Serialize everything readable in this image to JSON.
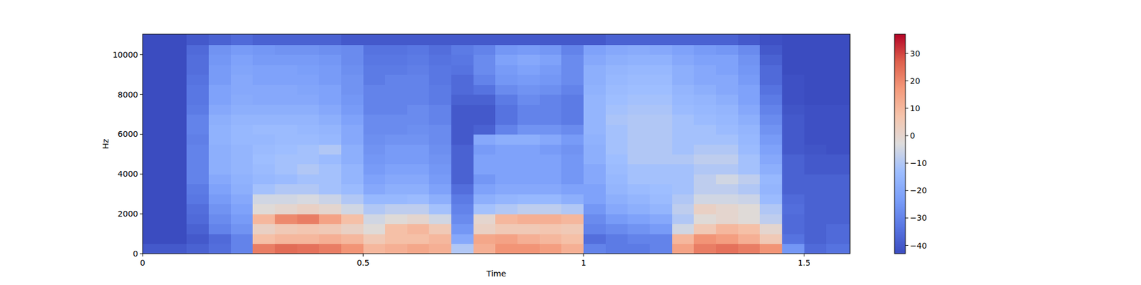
{
  "chart_data": {
    "type": "heatmap",
    "xlabel": "Time",
    "ylabel": "Hz",
    "xlim": [
      0,
      1.604
    ],
    "ylim": [
      0,
      11025
    ],
    "xticks": [
      0,
      0.5,
      1,
      1.5
    ],
    "yticks": [
      0,
      2000,
      4000,
      6000,
      8000,
      10000
    ],
    "x_edges": [
      0,
      0.05,
      0.1,
      0.15,
      0.2,
      0.25,
      0.3,
      0.35,
      0.4,
      0.45,
      0.5,
      0.55,
      0.6,
      0.65,
      0.7,
      0.75,
      0.8,
      0.85,
      0.9,
      0.95,
      1.0,
      1.05,
      1.1,
      1.15,
      1.2,
      1.25,
      1.3,
      1.35,
      1.4,
      1.45,
      1.5,
      1.55,
      1.6,
      1.604
    ],
    "y_edges": [
      0,
      500,
      1000,
      1500,
      2000,
      2500,
      3000,
      3500,
      4000,
      4500,
      5000,
      5500,
      6000,
      6500,
      7000,
      7500,
      8000,
      8500,
      9000,
      9500,
      10000,
      10500,
      11025
    ],
    "cells": [
      [
        -40,
        -43,
        -43,
        -43,
        -43,
        -43,
        -43,
        -43,
        -43,
        -43,
        -43,
        -43,
        -43,
        -43,
        -43,
        -43,
        -43,
        -43,
        -43,
        -43,
        -43,
        -43
      ],
      [
        -40,
        -43,
        -43,
        -43,
        -43,
        -43,
        -43,
        -43,
        -43,
        -43,
        -43,
        -43,
        -43,
        -43,
        -43,
        -43,
        -43,
        -43,
        -43,
        -43,
        -43,
        -43
      ],
      [
        -38,
        -40,
        -38,
        -36,
        -35,
        -33,
        -32,
        -30,
        -30,
        -30,
        -30,
        -31,
        -30,
        -30,
        -32,
        -33,
        -33,
        -34,
        -35,
        -35,
        -36,
        -40
      ],
      [
        -35,
        -36,
        -30,
        -28,
        -26,
        -24,
        -22,
        -20,
        -18,
        -18,
        -18,
        -17,
        -17,
        -18,
        -20,
        -22,
        -22,
        -24,
        -24,
        -25,
        -26,
        -38
      ],
      [
        -30,
        -30,
        -26,
        -24,
        -22,
        -20,
        -18,
        -17,
        -16,
        -16,
        -16,
        -15,
        -15,
        -16,
        -18,
        -19,
        -20,
        -20,
        -21,
        -22,
        -24,
        -36
      ],
      [
        22,
        8,
        2,
        10,
        -2,
        -5,
        -12,
        -15,
        -14,
        -13,
        -14,
        -15,
        -14,
        -16,
        -18,
        -20,
        -20,
        -22,
        -22,
        -24,
        -25,
        -38
      ],
      [
        25,
        10,
        5,
        20,
        0,
        -5,
        -10,
        -14,
        -12,
        -12,
        -13,
        -14,
        -14,
        -16,
        -18,
        -20,
        -20,
        -22,
        -22,
        -24,
        -26,
        -38
      ],
      [
        24,
        10,
        6,
        22,
        2,
        -4,
        -10,
        -12,
        -10,
        -12,
        -12,
        -14,
        -15,
        -16,
        -18,
        -20,
        -21,
        -22,
        -23,
        -24,
        -26,
        -38
      ],
      [
        22,
        12,
        5,
        15,
        0,
        -6,
        -12,
        -12,
        -12,
        -14,
        -10,
        -15,
        -16,
        -18,
        -20,
        -22,
        -22,
        -24,
        -24,
        -25,
        -27,
        -38
      ],
      [
        18,
        10,
        2,
        8,
        -5,
        -10,
        -14,
        -16,
        -16,
        -18,
        -18,
        -20,
        -20,
        -22,
        -24,
        -25,
        -26,
        -26,
        -27,
        -28,
        -28,
        -40
      ],
      [
        10,
        5,
        -2,
        -5,
        -10,
        -15,
        -20,
        -22,
        -24,
        -25,
        -26,
        -27,
        -28,
        -28,
        -30,
        -30,
        -30,
        -32,
        -32,
        -33,
        -34,
        -40
      ],
      [
        12,
        8,
        8,
        -2,
        -8,
        -15,
        -18,
        -20,
        -22,
        -24,
        -24,
        -26,
        -28,
        -28,
        -30,
        -30,
        -30,
        -30,
        -32,
        -33,
        -34,
        -40
      ],
      [
        14,
        8,
        10,
        0,
        -8,
        -14,
        -18,
        -20,
        -22,
        -24,
        -24,
        -26,
        -27,
        -28,
        -28,
        -30,
        -30,
        -30,
        -31,
        -32,
        -33,
        -40
      ],
      [
        12,
        10,
        5,
        -5,
        -12,
        -18,
        -22,
        -24,
        -25,
        -26,
        -27,
        -28,
        -28,
        -30,
        -30,
        -32,
        -32,
        -33,
        -33,
        -34,
        -35,
        -40
      ],
      [
        -10,
        -20,
        -25,
        -28,
        -30,
        -32,
        -35,
        -38,
        -38,
        -38,
        -38,
        -40,
        -40,
        -40,
        -40,
        -38,
        -36,
        -36,
        -34,
        -33,
        -32,
        -40
      ],
      [
        12,
        14,
        2,
        0,
        -12,
        -18,
        -22,
        -25,
        -22,
        -22,
        -24,
        -20,
        -38,
        -40,
        -40,
        -38,
        -34,
        -30,
        -28,
        -28,
        -30,
        -40
      ],
      [
        18,
        15,
        5,
        10,
        -10,
        -16,
        -20,
        -22,
        -22,
        -22,
        -22,
        -18,
        -30,
        -34,
        -34,
        -32,
        -28,
        -25,
        -24,
        -22,
        -25,
        -40
      ],
      [
        18,
        12,
        5,
        12,
        -8,
        -15,
        -20,
        -22,
        -22,
        -22,
        -22,
        -18,
        -26,
        -30,
        -30,
        -28,
        -26,
        -24,
        -22,
        -20,
        -24,
        -40
      ],
      [
        16,
        10,
        6,
        12,
        -8,
        -15,
        -20,
        -22,
        -22,
        -22,
        -24,
        -20,
        -26,
        -30,
        -30,
        -30,
        -27,
        -25,
        -24,
        -22,
        -25,
        -40
      ],
      [
        12,
        8,
        5,
        10,
        -10,
        -18,
        -22,
        -25,
        -25,
        -25,
        -26,
        -24,
        -28,
        -32,
        -32,
        -32,
        -30,
        -28,
        -28,
        -28,
        -30,
        -40
      ],
      [
        -30,
        -35,
        -30,
        -28,
        -25,
        -22,
        -22,
        -20,
        -20,
        -18,
        -18,
        -17,
        -16,
        -16,
        -16,
        -16,
        -17,
        -18,
        -18,
        -20,
        -22,
        -40
      ],
      [
        -32,
        -32,
        -28,
        -24,
        -20,
        -18,
        -16,
        -15,
        -14,
        -13,
        -12,
        -12,
        -12,
        -11,
        -12,
        -13,
        -14,
        -15,
        -16,
        -18,
        -20,
        -38
      ],
      [
        -32,
        -30,
        -26,
        -22,
        -18,
        -16,
        -14,
        -12,
        -12,
        -10,
        -10,
        -10,
        -10,
        -10,
        -11,
        -12,
        -13,
        -14,
        -15,
        -17,
        -19,
        -38
      ],
      [
        -30,
        -30,
        -24,
        -20,
        -16,
        -14,
        -13,
        -12,
        -12,
        -10,
        -10,
        -10,
        -10,
        -10,
        -11,
        -12,
        -13,
        -14,
        -15,
        -17,
        -20,
        -38
      ],
      [
        15,
        10,
        -5,
        -10,
        -8,
        -10,
        -12,
        -12,
        -12,
        -10,
        -12,
        -12,
        -12,
        -12,
        -14,
        -15,
        -16,
        -18,
        -18,
        -20,
        -22,
        -38
      ],
      [
        22,
        18,
        5,
        -2,
        2,
        -5,
        -8,
        -8,
        -10,
        -8,
        -10,
        -12,
        -12,
        -14,
        -15,
        -16,
        -18,
        -20,
        -20,
        -22,
        -24,
        -38
      ],
      [
        24,
        16,
        10,
        0,
        0,
        -5,
        -8,
        -5,
        -10,
        -8,
        -10,
        -12,
        -14,
        -15,
        -16,
        -18,
        -20,
        -20,
        -22,
        -22,
        -25,
        -38
      ],
      [
        22,
        12,
        8,
        -2,
        -2,
        -6,
        -10,
        -8,
        -12,
        -12,
        -14,
        -15,
        -16,
        -18,
        -20,
        -22,
        -22,
        -24,
        -25,
        -26,
        -28,
        -40
      ],
      [
        18,
        5,
        0,
        -8,
        -10,
        -14,
        -16,
        -15,
        -18,
        -20,
        -22,
        -24,
        -26,
        -28,
        -30,
        -32,
        -34,
        -36,
        -36,
        -38,
        -40,
        -42
      ],
      [
        -25,
        -34,
        -36,
        -36,
        -35,
        -36,
        -38,
        -38,
        -38,
        -38,
        -40,
        -40,
        -40,
        -40,
        -41,
        -42,
        -42,
        -42,
        -43,
        -43,
        -43,
        -43
      ],
      [
        -36,
        -38,
        -38,
        -38,
        -38,
        -38,
        -38,
        -38,
        -40,
        -40,
        -41,
        -42,
        -42,
        -42,
        -42,
        -43,
        -43,
        -43,
        -43,
        -43,
        -43,
        -43
      ],
      [
        -34,
        -36,
        -36,
        -38,
        -38,
        -38,
        -38,
        -38,
        -40,
        -40,
        -42,
        -42,
        -42,
        -42,
        -42,
        -43,
        -43,
        -43,
        -43,
        -43,
        -43,
        -43
      ],
      [
        -34,
        -36,
        -36,
        -38,
        -38,
        -38,
        -38,
        -38,
        -40,
        -40,
        -42,
        -42,
        -42,
        -42,
        -42,
        -43,
        -43,
        -43,
        -43,
        -43,
        -43,
        -43
      ]
    ],
    "colorbar": {
      "range": [
        -43,
        37
      ],
      "ticks": [
        {
          "value": -40,
          "label": "−40"
        },
        {
          "value": -30,
          "label": "−30"
        },
        {
          "value": -20,
          "label": "−20"
        },
        {
          "value": -10,
          "label": "−10"
        },
        0,
        10,
        20,
        30
      ]
    }
  }
}
